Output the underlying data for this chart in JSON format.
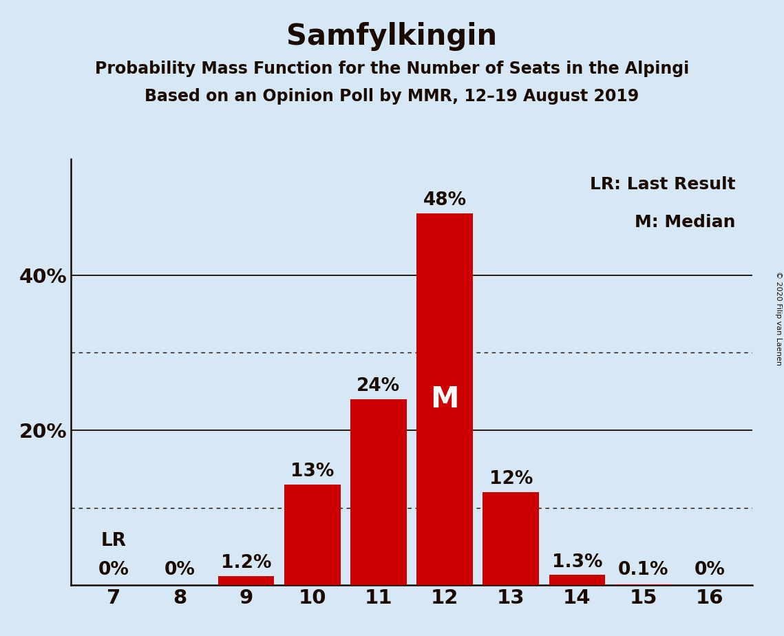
{
  "title": "Samfylkingin",
  "subtitle1": "Probability Mass Function for the Number of Seats in the Alpingi",
  "subtitle2": "Based on an Opinion Poll by MMR, 12–19 August 2019",
  "copyright": "© 2020 Filip van Laenen",
  "seats": [
    7,
    8,
    9,
    10,
    11,
    12,
    13,
    14,
    15,
    16
  ],
  "probabilities": [
    0.0,
    0.0,
    1.2,
    13.0,
    24.0,
    48.0,
    12.0,
    1.3,
    0.1,
    0.0
  ],
  "labels": [
    "0%",
    "0%",
    "1.2%",
    "13%",
    "24%",
    "48%",
    "12%",
    "1.3%",
    "0.1%",
    "0%"
  ],
  "bar_color": "#cc0000",
  "background_color": "#d6e8f5",
  "text_color": "#1a0a00",
  "median_seat": 12,
  "lr_seat": 7,
  "legend_text1": "LR: Last Result",
  "legend_text2": "M: Median",
  "solid_gridlines": [
    20,
    40
  ],
  "dotted_gridlines": [
    10,
    30
  ],
  "ylim": [
    0,
    55
  ],
  "title_fontsize": 30,
  "subtitle_fontsize": 17,
  "label_fontsize": 19,
  "tick_fontsize": 21,
  "legend_fontsize": 18,
  "median_fontsize": 30
}
